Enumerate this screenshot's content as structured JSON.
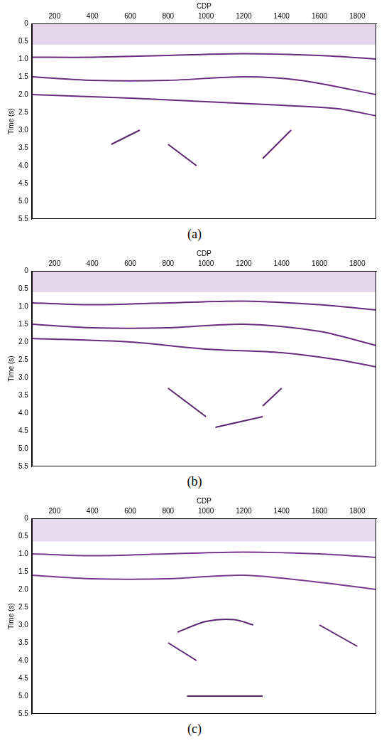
{
  "chart_data": [
    {
      "type": "line",
      "caption": "(a)",
      "x_label": "CDP",
      "y_label": "Time (s)",
      "xlim": [
        80,
        1900
      ],
      "xticks": [
        200,
        400,
        600,
        800,
        1000,
        1200,
        1400,
        1600,
        1800
      ],
      "ylim": [
        0,
        5.5
      ],
      "yticks": [
        0,
        0.5,
        {
          "value": 1,
          "label": "1.0"
        },
        1.5,
        {
          "value": 2,
          "label": "2.0"
        },
        2.5,
        {
          "value": 3,
          "label": "3.0"
        },
        3.5,
        {
          "value": 4,
          "label": "4.0"
        },
        4.5,
        {
          "value": 5,
          "label": "5.0"
        },
        5.5
      ],
      "grid": false,
      "series": [
        {
          "type": "area",
          "color": "#e6d6ec",
          "x": [
            80,
            1900
          ],
          "values": [
            0.6,
            0.6
          ]
        },
        {
          "color": "#6a2a80",
          "x": [
            80,
            400,
            800,
            1200,
            1600,
            1900
          ],
          "values": [
            0.95,
            0.95,
            0.9,
            0.85,
            0.9,
            1.0
          ]
        },
        {
          "color": "#6a2a80",
          "x": [
            80,
            400,
            800,
            1200,
            1500,
            1900
          ],
          "values": [
            1.5,
            1.6,
            1.6,
            1.5,
            1.6,
            2.0
          ]
        },
        {
          "color": "#6a2a80",
          "x": [
            80,
            600,
            1000,
            1400,
            1700,
            1900
          ],
          "values": [
            2.0,
            2.1,
            2.2,
            2.3,
            2.4,
            2.6
          ]
        },
        {
          "color": "#5a2470",
          "x": [
            500,
            650
          ],
          "values": [
            3.4,
            3.0
          ]
        },
        {
          "color": "#5a2470",
          "x": [
            800,
            950
          ],
          "values": [
            3.4,
            4.0
          ]
        },
        {
          "color": "#5a2470",
          "x": [
            1300,
            1450
          ],
          "values": [
            3.8,
            3.0
          ]
        }
      ]
    },
    {
      "type": "line",
      "caption": "(b)",
      "x_label": "CDP",
      "y_label": "Time (s)",
      "xlim": [
        80,
        1900
      ],
      "xticks": [
        200,
        400,
        600,
        800,
        1000,
        1200,
        1400,
        1600,
        1800
      ],
      "ylim": [
        0,
        5.5
      ],
      "yticks": [
        0,
        0.5,
        {
          "value": 1,
          "label": "1.0"
        },
        1.5,
        {
          "value": 2,
          "label": "2.0"
        },
        2.5,
        {
          "value": 3,
          "label": "3.0"
        },
        3.5,
        {
          "value": 4,
          "label": "4.0"
        },
        4.5,
        {
          "value": 5,
          "label": "5.0"
        },
        5.5
      ],
      "grid": false,
      "series": [
        {
          "type": "area",
          "color": "#e6d6ec",
          "x": [
            80,
            1900
          ],
          "values": [
            0.6,
            0.6
          ]
        },
        {
          "color": "#6a2a80",
          "x": [
            80,
            400,
            800,
            1200,
            1600,
            1900
          ],
          "values": [
            0.9,
            0.95,
            0.9,
            0.85,
            0.95,
            1.1
          ]
        },
        {
          "color": "#6a2a80",
          "x": [
            80,
            400,
            800,
            1200,
            1600,
            1900
          ],
          "values": [
            1.5,
            1.6,
            1.6,
            1.5,
            1.7,
            2.1
          ]
        },
        {
          "color": "#6a2a80",
          "x": [
            80,
            600,
            1000,
            1400,
            1700,
            1900
          ],
          "values": [
            1.9,
            2.0,
            2.2,
            2.3,
            2.5,
            2.7
          ]
        },
        {
          "color": "#5a2470",
          "x": [
            800,
            1000
          ],
          "values": [
            3.3,
            4.1
          ]
        },
        {
          "color": "#5a2470",
          "x": [
            1050,
            1300
          ],
          "values": [
            4.4,
            4.1
          ]
        },
        {
          "color": "#5a2470",
          "x": [
            1300,
            1400
          ],
          "values": [
            3.8,
            3.3
          ]
        }
      ]
    },
    {
      "type": "line",
      "caption": "(c)",
      "x_label": "CDP",
      "y_label": "Time (s)",
      "xlim": [
        80,
        1900
      ],
      "xticks": [
        200,
        400,
        600,
        800,
        1000,
        1200,
        1400,
        1600,
        1800
      ],
      "ylim": [
        0,
        5.5
      ],
      "yticks": [
        0,
        0.5,
        {
          "value": 1,
          "label": "1.0"
        },
        1.5,
        {
          "value": 2,
          "label": "2.0"
        },
        2.5,
        {
          "value": 3,
          "label": "3.0"
        },
        3.5,
        {
          "value": 4,
          "label": "4.0"
        },
        4.5,
        {
          "value": 5,
          "label": "5.0"
        },
        5.5
      ],
      "grid": false,
      "series": [
        {
          "type": "area",
          "color": "#eadcef",
          "x": [
            80,
            1900
          ],
          "values": [
            0.65,
            0.65
          ]
        },
        {
          "color": "#7a3890",
          "x": [
            80,
            400,
            800,
            1200,
            1600,
            1900
          ],
          "values": [
            1.0,
            1.05,
            1.0,
            0.95,
            1.0,
            1.1
          ]
        },
        {
          "color": "#7a3890",
          "x": [
            80,
            400,
            800,
            1200,
            1600,
            1900
          ],
          "values": [
            1.6,
            1.7,
            1.7,
            1.6,
            1.8,
            2.0
          ]
        },
        {
          "color": "#5a2470",
          "x": [
            850,
            1000,
            1150,
            1250
          ],
          "values": [
            3.2,
            2.9,
            2.85,
            3.0
          ]
        },
        {
          "color": "#5a2470",
          "x": [
            800,
            950
          ],
          "values": [
            3.5,
            4.0
          ]
        },
        {
          "color": "#5a2470",
          "x": [
            1600,
            1800
          ],
          "values": [
            3.0,
            3.6
          ]
        },
        {
          "color": "#5a2470",
          "x": [
            900,
            1300
          ],
          "values": [
            5.0,
            5.0
          ]
        }
      ]
    }
  ]
}
